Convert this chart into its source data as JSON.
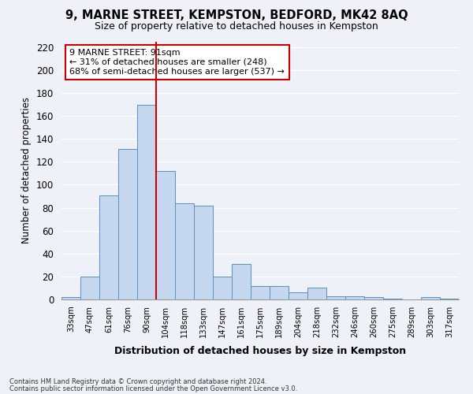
{
  "title": "9, MARNE STREET, KEMPSTON, BEDFORD, MK42 8AQ",
  "subtitle": "Size of property relative to detached houses in Kempston",
  "xlabel": "Distribution of detached houses by size in Kempston",
  "ylabel": "Number of detached properties",
  "bar_labels": [
    "33sqm",
    "47sqm",
    "61sqm",
    "76sqm",
    "90sqm",
    "104sqm",
    "118sqm",
    "133sqm",
    "147sqm",
    "161sqm",
    "175sqm",
    "189sqm",
    "204sqm",
    "218sqm",
    "232sqm",
    "246sqm",
    "260sqm",
    "275sqm",
    "289sqm",
    "303sqm",
    "317sqm"
  ],
  "bar_values": [
    2,
    20,
    91,
    131,
    170,
    112,
    84,
    82,
    20,
    31,
    12,
    12,
    6,
    10,
    3,
    3,
    2,
    1,
    0,
    2,
    1
  ],
  "bar_color": "#c5d8f0",
  "bar_edge_color": "#5a8fc0",
  "vline_color": "#cc0000",
  "vline_index": 4,
  "annotation_title": "9 MARNE STREET: 91sqm",
  "annotation_line1": "← 31% of detached houses are smaller (248)",
  "annotation_line2": "68% of semi-detached houses are larger (537) →",
  "annotation_box_color": "#ffffff",
  "annotation_box_edge": "#cc0000",
  "ylim": [
    0,
    225
  ],
  "yticks": [
    0,
    20,
    40,
    60,
    80,
    100,
    120,
    140,
    160,
    180,
    200,
    220
  ],
  "footnote1": "Contains HM Land Registry data © Crown copyright and database right 2024.",
  "footnote2": "Contains public sector information licensed under the Open Government Licence v3.0.",
  "bg_color": "#eef2f8",
  "grid_color": "#ffffff"
}
